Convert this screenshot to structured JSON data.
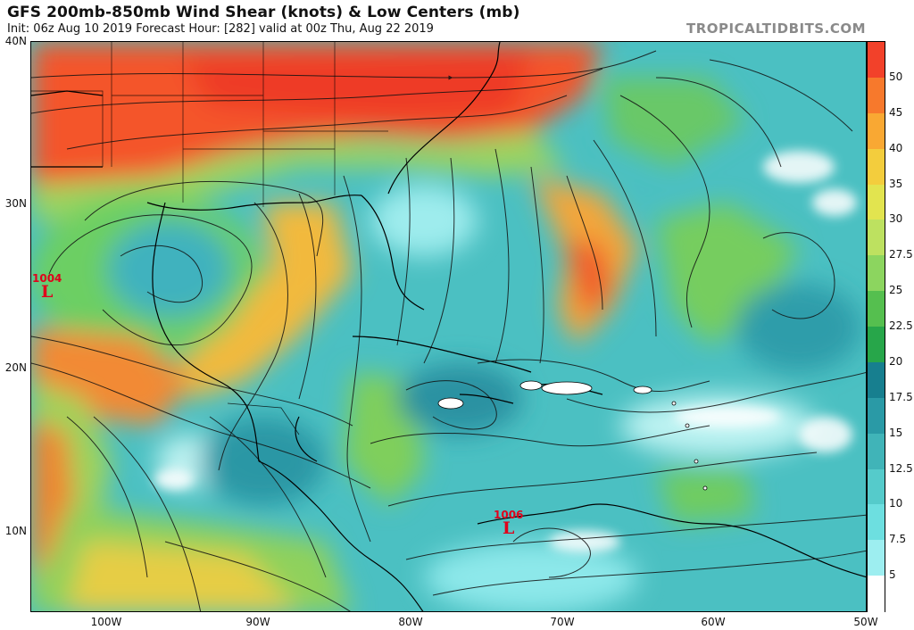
{
  "header": {
    "title": "GFS 200mb-850mb Wind Shear (knots) & Low Centers (mb)",
    "subtitle": "Init: 06z Aug 10 2019   Forecast Hour: [282]   valid at 00z Thu, Aug 22 2019",
    "watermark": "TROPICALTIDBITS.COM"
  },
  "axes": {
    "lat_labels": [
      "40N",
      "30N",
      "20N",
      "10N"
    ],
    "lon_labels": [
      "100W",
      "90W",
      "80W",
      "70W",
      "60W",
      "50W"
    ]
  },
  "colorbar": {
    "labels": [
      "50",
      "45",
      "40",
      "35",
      "30",
      "27.5",
      "25",
      "22.5",
      "20",
      "17.5",
      "15",
      "12.5",
      "10",
      "7.5",
      "5"
    ],
    "colors": [
      "#f2412a",
      "#f7792c",
      "#f9a833",
      "#f3cd3d",
      "#e2e44f",
      "#bde160",
      "#8cd55f",
      "#55bf4f",
      "#27a64a",
      "#177f8f",
      "#2a9aa6",
      "#40b4b8",
      "#55cbcb",
      "#6ddfe0",
      "#9deef0",
      "#ffffff"
    ]
  },
  "lows": [
    {
      "pressure": "1004",
      "symbol": "L"
    },
    {
      "pressure": "1006",
      "symbol": "L"
    }
  ],
  "colors": {
    "low_marker": "#e0001b",
    "frame": "#000000"
  }
}
